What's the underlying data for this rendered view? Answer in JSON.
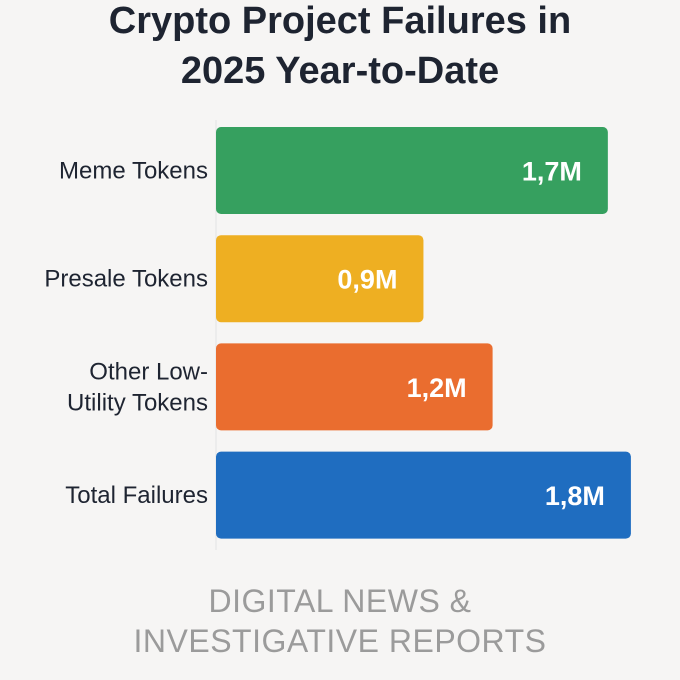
{
  "chart_data": {
    "type": "bar",
    "orientation": "horizontal",
    "title_lines": [
      "Crypto Project Failures in",
      "2025 Year-to-Date"
    ],
    "categories": [
      [
        "Meme Tokens"
      ],
      [
        "Presale Tokens"
      ],
      [
        "Other Low-",
        "Utility Tokens"
      ],
      [
        "Total Failures"
      ]
    ],
    "values": [
      1.7,
      0.9,
      1.2,
      1.8
    ],
    "value_labels": [
      "1,7M",
      "0,9M",
      "1,2M",
      "1,8M"
    ],
    "unit": "M",
    "colors": [
      "#36a05f",
      "#eeaf22",
      "#ea6d2f",
      "#1f6dc0"
    ],
    "grid": false,
    "legend": "none"
  },
  "footer": {
    "line1": "DIGITAL NEWS &",
    "line2": "INVESTIGATIVE REPORTS"
  }
}
